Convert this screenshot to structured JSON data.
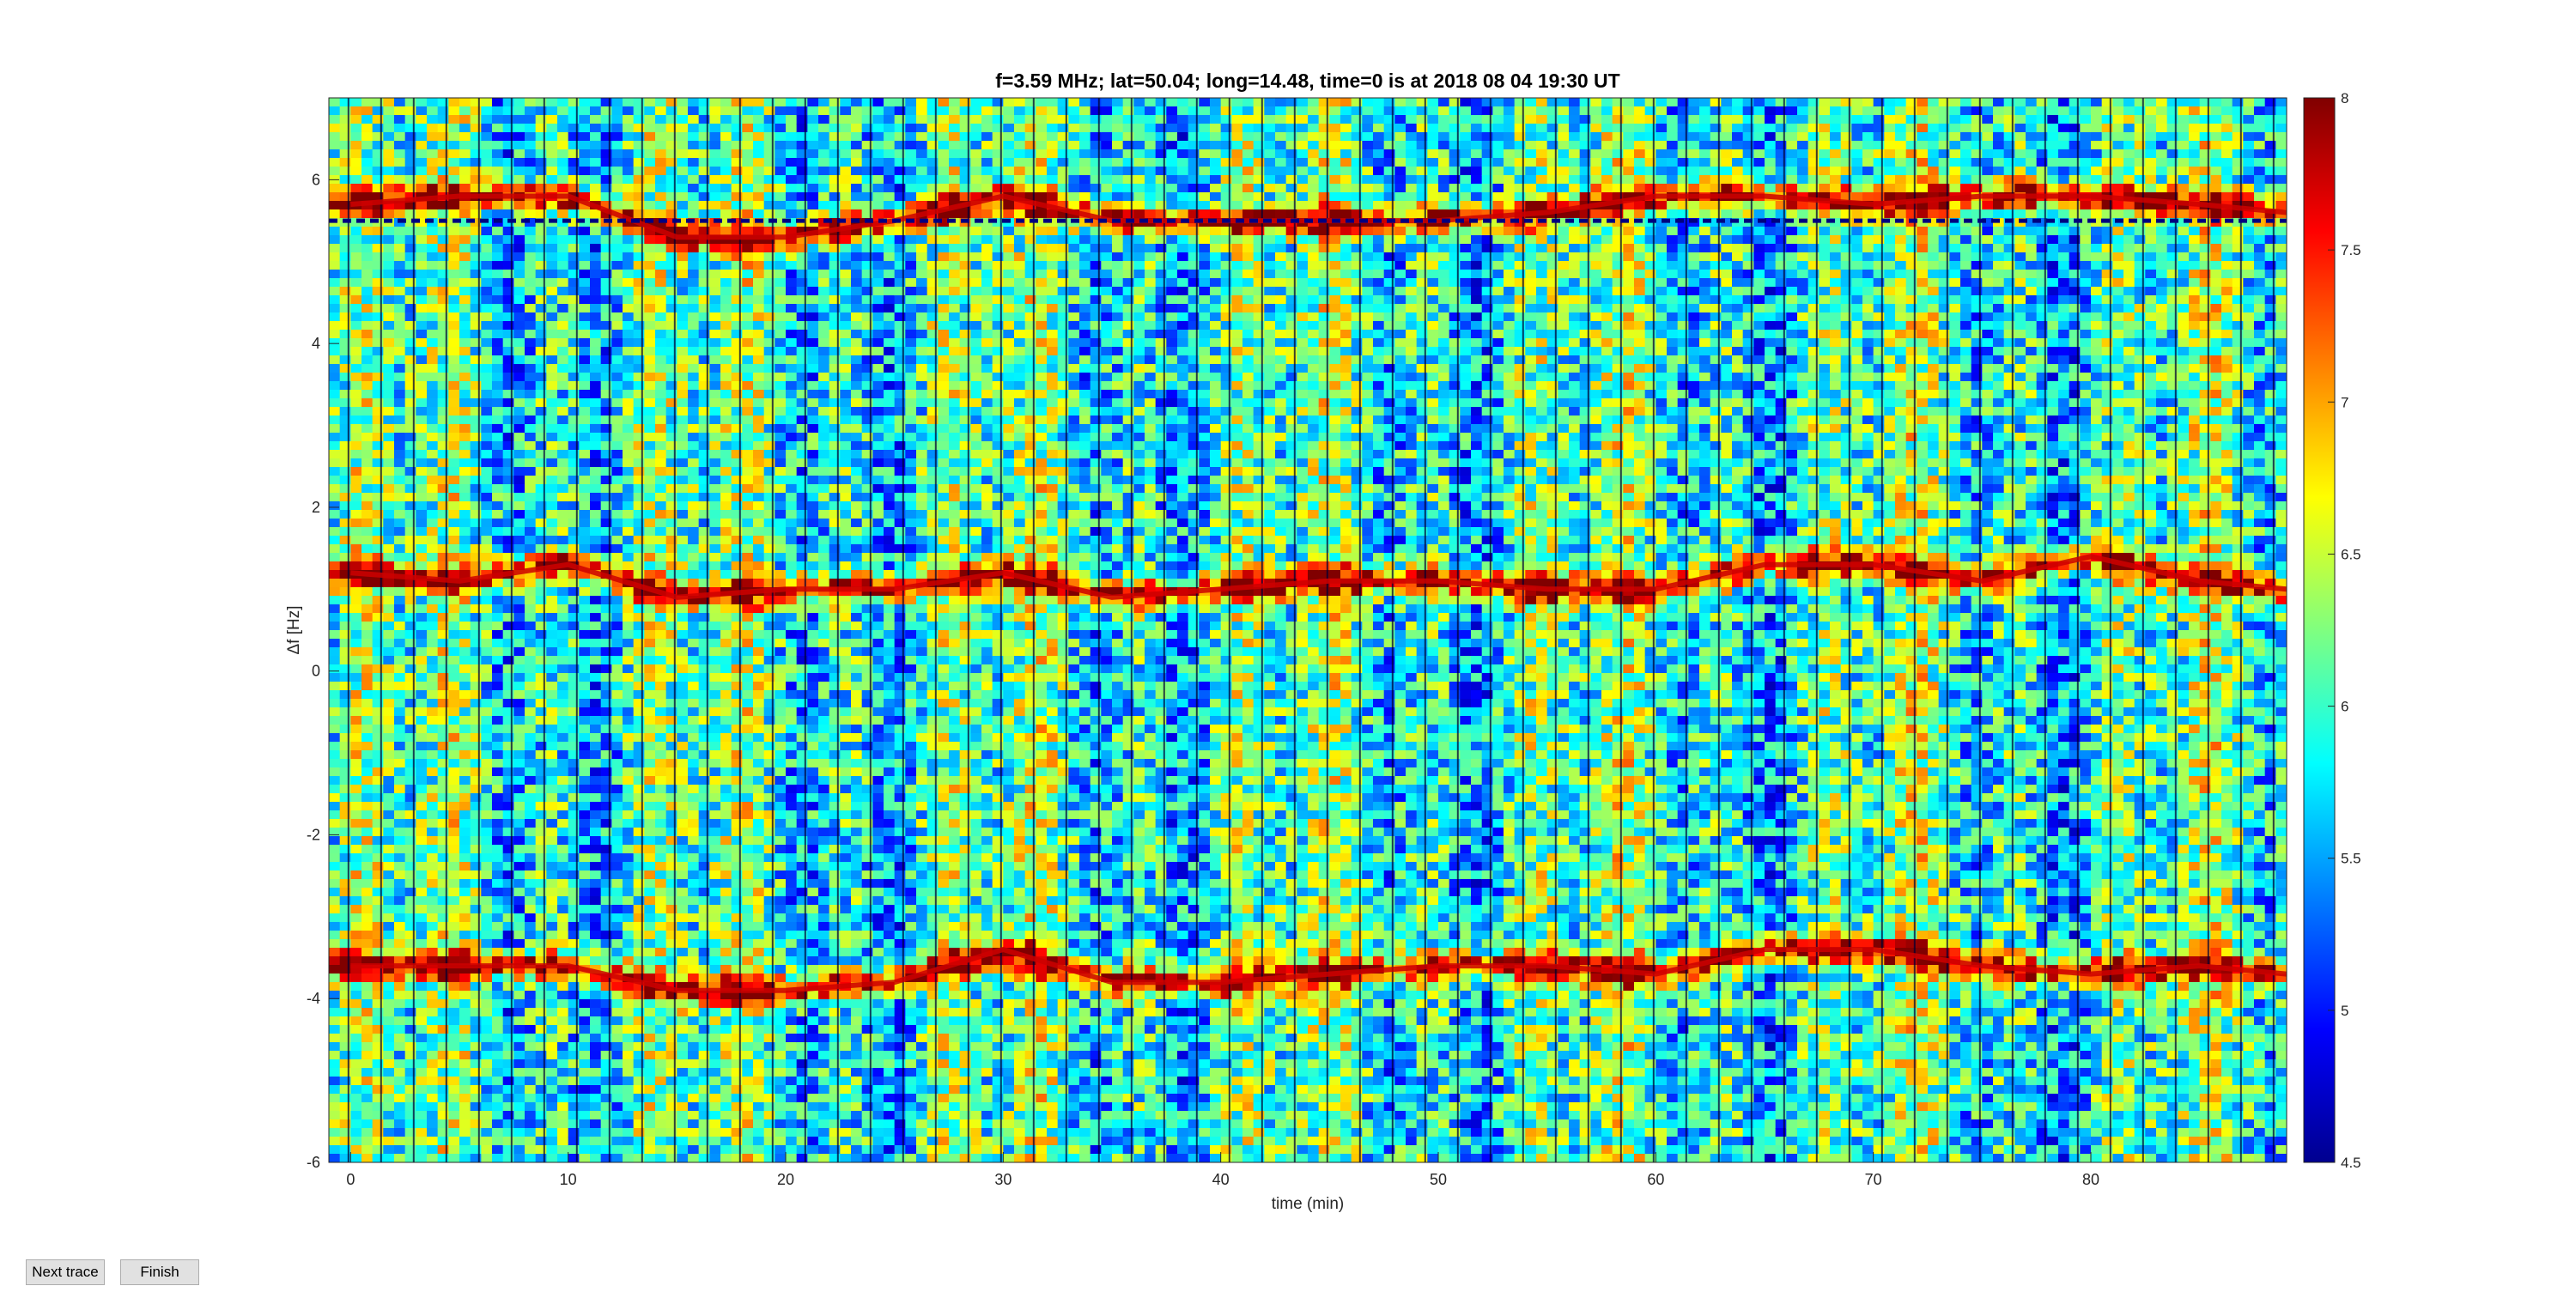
{
  "chart_data": {
    "type": "heatmap",
    "title": "f=3.59 MHz;  lat=50.04; long=14.48, time=0 is at 2018 08 04 19:30 UT",
    "xlabel": "time (min)",
    "ylabel": "Δf [Hz]",
    "xlim": [
      -1,
      89
    ],
    "ylim": [
      -6,
      7
    ],
    "xticks": [
      0,
      10,
      20,
      30,
      40,
      50,
      60,
      70,
      80
    ],
    "yticks": [
      -6,
      -4,
      -2,
      0,
      2,
      4,
      6
    ],
    "colorbar": {
      "range": [
        4.5,
        8
      ],
      "ticks": [
        "4.5",
        "5",
        "5.5",
        "6",
        "6.5",
        "7",
        "7.5",
        "8"
      ],
      "colormap": "jet"
    },
    "reference_line": {
      "y": 5.5,
      "style": "dashed",
      "color": "#000080"
    },
    "series": [
      {
        "x": [
          0,
          5,
          10,
          15,
          20,
          25,
          30,
          35,
          40,
          45,
          50,
          55,
          60,
          65,
          70,
          75,
          80,
          85,
          89
        ],
        "values": [
          1.2,
          1.1,
          1.3,
          0.9,
          1.0,
          1.0,
          1.2,
          0.9,
          1.0,
          1.1,
          1.1,
          1.0,
          1.0,
          1.3,
          1.3,
          1.1,
          1.4,
          1.1,
          1.0
        ]
      },
      {
        "x": [
          0,
          5,
          10,
          15,
          20,
          25,
          30,
          35,
          40,
          45,
          50,
          55,
          60,
          65,
          70,
          75,
          80,
          85,
          89
        ],
        "values": [
          -3.6,
          -3.6,
          -3.6,
          -3.9,
          -3.9,
          -3.8,
          -3.4,
          -3.8,
          -3.8,
          -3.7,
          -3.6,
          -3.6,
          -3.7,
          -3.4,
          -3.4,
          -3.6,
          -3.7,
          -3.6,
          -3.7
        ]
      },
      {
        "x": [
          0,
          5,
          10,
          15,
          20,
          25,
          30,
          35,
          40,
          45,
          50,
          55,
          60,
          65,
          70,
          75,
          80,
          85,
          89
        ],
        "values": [
          5.7,
          5.8,
          5.8,
          5.3,
          5.3,
          5.5,
          5.8,
          5.5,
          5.5,
          5.5,
          5.5,
          5.6,
          5.8,
          5.8,
          5.7,
          5.8,
          5.8,
          5.7,
          5.6
        ]
      }
    ]
  },
  "buttons": {
    "next_trace": "Next trace",
    "finish": "Finish"
  }
}
